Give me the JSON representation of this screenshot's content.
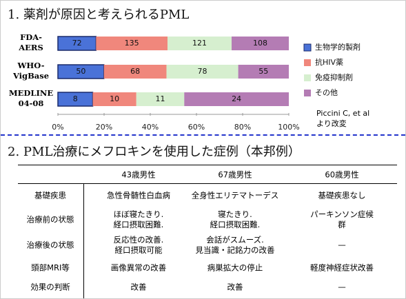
{
  "chart_data": {
    "type": "bar",
    "orientation": "horizontal",
    "stacked": "percent",
    "title": "1. 薬剤が原因と考えられるPML",
    "categories": [
      "FDA-\nAERS",
      "WHO-\nVigBase",
      "MEDLINE\n04-08"
    ],
    "series": [
      {
        "name": "生物学的製剤",
        "color": "#4a72d8",
        "values": [
          72,
          50,
          8
        ]
      },
      {
        "name": "抗HIV薬",
        "color": "#f0877c",
        "values": [
          135,
          68,
          10
        ]
      },
      {
        "name": "免疫抑制剤",
        "color": "#d6efcf",
        "values": [
          121,
          78,
          11
        ]
      },
      {
        "name": "その他",
        "color": "#b47cb4",
        "values": [
          108,
          55,
          24
        ]
      }
    ],
    "xlim": [
      0,
      100
    ],
    "xticks": [
      {
        "value": 0,
        "label": "0%"
      },
      {
        "value": 20,
        "label": "20%"
      },
      {
        "value": 40,
        "label": "40%"
      },
      {
        "value": 60,
        "label": "60%"
      },
      {
        "value": 80,
        "label": "80%"
      },
      {
        "value": 100,
        "label": "100%"
      }
    ],
    "legend": "right",
    "source": "Piccini C, et al\nより改変"
  },
  "section2": {
    "title": "2. PML治療にメフロキンを使用した症例（本邦例）"
  },
  "table": {
    "header": [
      "43歳男性",
      "67歳男性",
      "60歳男性"
    ],
    "rows": [
      [
        "基礎疾患",
        "急性骨髄性白血病",
        "全身性エリテマトーデス",
        "基礎疾患なし"
      ],
      [
        "治療前の状態",
        "ほぼ寝たきり.\n経口摂取困難.",
        "寝たきり.\n経口摂取困難.",
        "パーキンソン症候群"
      ],
      [
        "治療後の状態",
        "反応性の改善.\n経口摂取可能",
        "会話がスムーズ.\n見当識・記銘力の改善",
        "—"
      ],
      [
        "頭部MRI等",
        "画像異常の改善",
        "病巣拡大の停止",
        "軽度神経症状改善"
      ],
      [
        "効果の判断",
        "改善",
        "改善",
        "—"
      ]
    ]
  }
}
